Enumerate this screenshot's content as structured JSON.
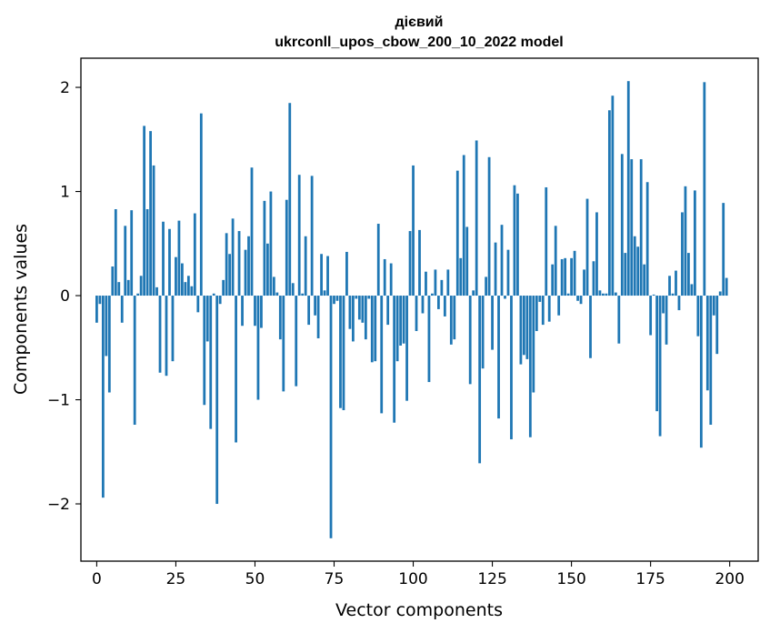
{
  "chart_data": {
    "type": "bar",
    "title": "дієвий",
    "subtitle": "ukrconll_upos_cbow_200_10_2022 model",
    "xlabel": "Vector components",
    "ylabel": "Components values",
    "xlim": [
      -5,
      209
    ],
    "ylim": [
      -2.55,
      2.28
    ],
    "xticks": [
      0,
      25,
      50,
      75,
      100,
      125,
      150,
      175,
      200
    ],
    "yticks": [
      -2,
      -1,
      0,
      1,
      2
    ],
    "ytick_labels": [
      "−2",
      "−1",
      "0",
      "1",
      "2"
    ],
    "bar_color": "#1f77b4",
    "grid": false,
    "x": [
      0,
      1,
      2,
      3,
      4,
      5,
      6,
      7,
      8,
      9,
      10,
      11,
      12,
      13,
      14,
      15,
      16,
      17,
      18,
      19,
      20,
      21,
      22,
      23,
      24,
      25,
      26,
      27,
      28,
      29,
      30,
      31,
      32,
      33,
      34,
      35,
      36,
      37,
      38,
      39,
      40,
      41,
      42,
      43,
      44,
      45,
      46,
      47,
      48,
      49,
      50,
      51,
      52,
      53,
      54,
      55,
      56,
      57,
      58,
      59,
      60,
      61,
      62,
      63,
      64,
      65,
      66,
      67,
      68,
      69,
      70,
      71,
      72,
      73,
      74,
      75,
      76,
      77,
      78,
      79,
      80,
      81,
      82,
      83,
      84,
      85,
      86,
      87,
      88,
      89,
      90,
      91,
      92,
      93,
      94,
      95,
      96,
      97,
      98,
      99,
      100,
      101,
      102,
      103,
      104,
      105,
      106,
      107,
      108,
      109,
      110,
      111,
      112,
      113,
      114,
      115,
      116,
      117,
      118,
      119,
      120,
      121,
      122,
      123,
      124,
      125,
      126,
      127,
      128,
      129,
      130,
      131,
      132,
      133,
      134,
      135,
      136,
      137,
      138,
      139,
      140,
      141,
      142,
      143,
      144,
      145,
      146,
      147,
      148,
      149,
      150,
      151,
      152,
      153,
      154,
      155,
      156,
      157,
      158,
      159,
      160,
      161,
      162,
      163,
      164,
      165,
      166,
      167,
      168,
      169,
      170,
      171,
      172,
      173,
      174,
      175,
      176,
      177,
      178,
      179,
      180,
      181,
      182,
      183,
      184,
      185,
      186,
      187,
      188,
      189,
      190,
      191,
      192,
      193,
      194,
      195,
      196,
      197,
      198,
      199
    ],
    "values": [
      -0.26,
      -0.08,
      -1.94,
      -0.58,
      -0.93,
      0.28,
      0.83,
      0.13,
      -0.26,
      0.67,
      0.15,
      0.82,
      -1.24,
      0.02,
      0.19,
      1.63,
      0.83,
      1.58,
      1.25,
      0.08,
      -0.74,
      0.71,
      -0.77,
      0.64,
      -0.63,
      0.37,
      0.72,
      0.31,
      0.13,
      0.19,
      0.09,
      0.79,
      -0.16,
      1.75,
      -1.05,
      -0.44,
      -1.28,
      0.02,
      -2.0,
      -0.08,
      0.15,
      0.6,
      0.4,
      0.74,
      -1.41,
      0.62,
      -0.29,
      0.44,
      0.57,
      1.23,
      -0.29,
      -1.0,
      -0.31,
      0.91,
      0.5,
      1.0,
      0.18,
      0.03,
      -0.42,
      -0.92,
      0.92,
      1.85,
      0.12,
      -0.87,
      1.16,
      0.02,
      0.57,
      -0.28,
      1.15,
      -0.19,
      -0.41,
      0.4,
      0.05,
      0.38,
      -2.33,
      -0.08,
      -0.05,
      -1.08,
      -1.1,
      0.42,
      -0.32,
      -0.44,
      -0.03,
      -0.23,
      -0.26,
      -0.42,
      -0.03,
      -0.64,
      -0.63,
      0.69,
      -1.13,
      0.35,
      -0.28,
      0.31,
      -1.22,
      -0.63,
      -0.48,
      -0.46,
      -1.01,
      0.62,
      1.25,
      -0.34,
      0.63,
      -0.17,
      0.23,
      -0.83,
      0.02,
      0.25,
      -0.13,
      0.15,
      -0.2,
      0.25,
      -0.47,
      -0.42,
      1.2,
      0.36,
      1.35,
      0.66,
      -0.85,
      0.05,
      1.49,
      -1.61,
      -0.7,
      0.18,
      1.33,
      -0.52,
      0.51,
      -1.18,
      0.68,
      -0.03,
      0.44,
      -1.38,
      1.06,
      0.98,
      -0.66,
      -0.57,
      -0.61,
      -1.36,
      -0.93,
      -0.34,
      -0.06,
      -0.28,
      1.04,
      -0.25,
      0.3,
      0.67,
      -0.19,
      0.35,
      0.36,
      0.02,
      0.36,
      0.43,
      -0.05,
      -0.08,
      0.25,
      0.93,
      -0.6,
      0.33,
      0.8,
      0.05,
      0.02,
      0.02,
      1.78,
      1.92,
      0.03,
      -0.46,
      1.36,
      0.41,
      2.06,
      1.31,
      0.57,
      0.47,
      1.31,
      0.3,
      1.09,
      -0.38,
      0.01,
      -1.11,
      -1.35,
      -0.17,
      -0.47,
      0.19,
      0.02,
      0.24,
      -0.14,
      0.8,
      1.05,
      0.41,
      0.11,
      1.01,
      -0.39,
      -1.46,
      2.05,
      -0.91,
      -1.24,
      -0.19,
      -0.56,
      0.04,
      0.89,
      0.17
    ]
  }
}
